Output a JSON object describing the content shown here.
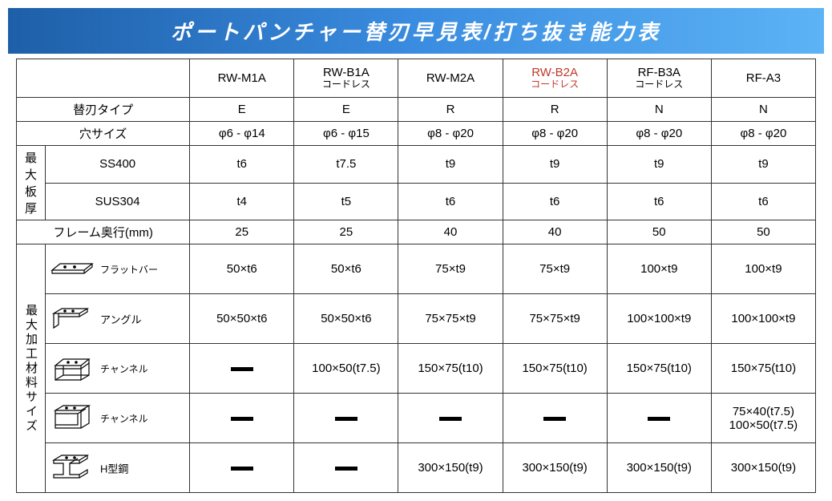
{
  "title": "ポートパンチャー替刃早見表/打ち抜き能力表",
  "products": [
    {
      "name": "RW-M1A",
      "sub": ""
    },
    {
      "name": "RW-B1A",
      "sub": "コードレス"
    },
    {
      "name": "RW-M2A",
      "sub": ""
    },
    {
      "name": "RW-B2A",
      "sub": "コードレス",
      "color": "#c0392b"
    },
    {
      "name": "RF-B3A",
      "sub": "コードレス"
    },
    {
      "name": "RF-A3",
      "sub": ""
    }
  ],
  "rows": {
    "bladeType": {
      "label": "替刃タイプ",
      "values": [
        "E",
        "E",
        "R",
        "R",
        "N",
        "N"
      ]
    },
    "holeSize": {
      "label": "穴サイズ",
      "values": [
        "φ6 - φ14",
        "φ6 - φ15",
        "φ8 - φ20",
        "φ8 - φ20",
        "φ8 - φ20",
        "φ8 - φ20"
      ]
    },
    "maxThick": {
      "label": "最大板厚",
      "ss400": {
        "label": "SS400",
        "values": [
          "t6",
          "t7.5",
          "t9",
          "t9",
          "t9",
          "t9"
        ]
      },
      "sus304": {
        "label": "SUS304",
        "values": [
          "t4",
          "t5",
          "t6",
          "t6",
          "t6",
          "t6"
        ]
      }
    },
    "frameDepth": {
      "label": "フレーム奥行(mm)",
      "values": [
        "25",
        "25",
        "40",
        "40",
        "50",
        "50"
      ]
    }
  },
  "materialHeader": "最大加工材料サイズ",
  "materials": [
    {
      "label": "フラットバー",
      "icon": "flatbar",
      "values": [
        "50×t6",
        "50×t6",
        "75×t9",
        "75×t9",
        "100×t9",
        "100×t9"
      ]
    },
    {
      "label": "アングル",
      "icon": "angle",
      "values": [
        "50×50×t6",
        "50×50×t6",
        "75×75×t9",
        "75×75×t9",
        "100×100×t9",
        "100×100×t9"
      ]
    },
    {
      "label": "チャンネル",
      "icon": "channel1",
      "values": [
        "—",
        "100×50(t7.5)",
        "150×75(t10)",
        "150×75(t10)",
        "150×75(t10)",
        "150×75(t10)"
      ]
    },
    {
      "label": "チャンネル",
      "icon": "channel2",
      "values": [
        "—",
        "—",
        "—",
        "—",
        "—",
        "75×40(t7.5)\n100×50(t7.5)"
      ]
    },
    {
      "label": "H型鋼",
      "icon": "hbeam",
      "values": [
        "—",
        "—",
        "300×150(t9)",
        "300×150(t9)",
        "300×150(t9)",
        "300×150(t9)"
      ]
    }
  ],
  "styling": {
    "banner_gradient": [
      "#1e5fa8",
      "#3a8ce0",
      "#5cb3f5"
    ],
    "banner_text_color": "#ffffff",
    "border_color": "#333333",
    "text_color": "#000000",
    "highlight_color": "#c0392b",
    "font_family": "Meiryo",
    "title_fontsize_pt": 20,
    "cell_fontsize_pt": 11,
    "icon_label_fontsize_pt": 9
  }
}
